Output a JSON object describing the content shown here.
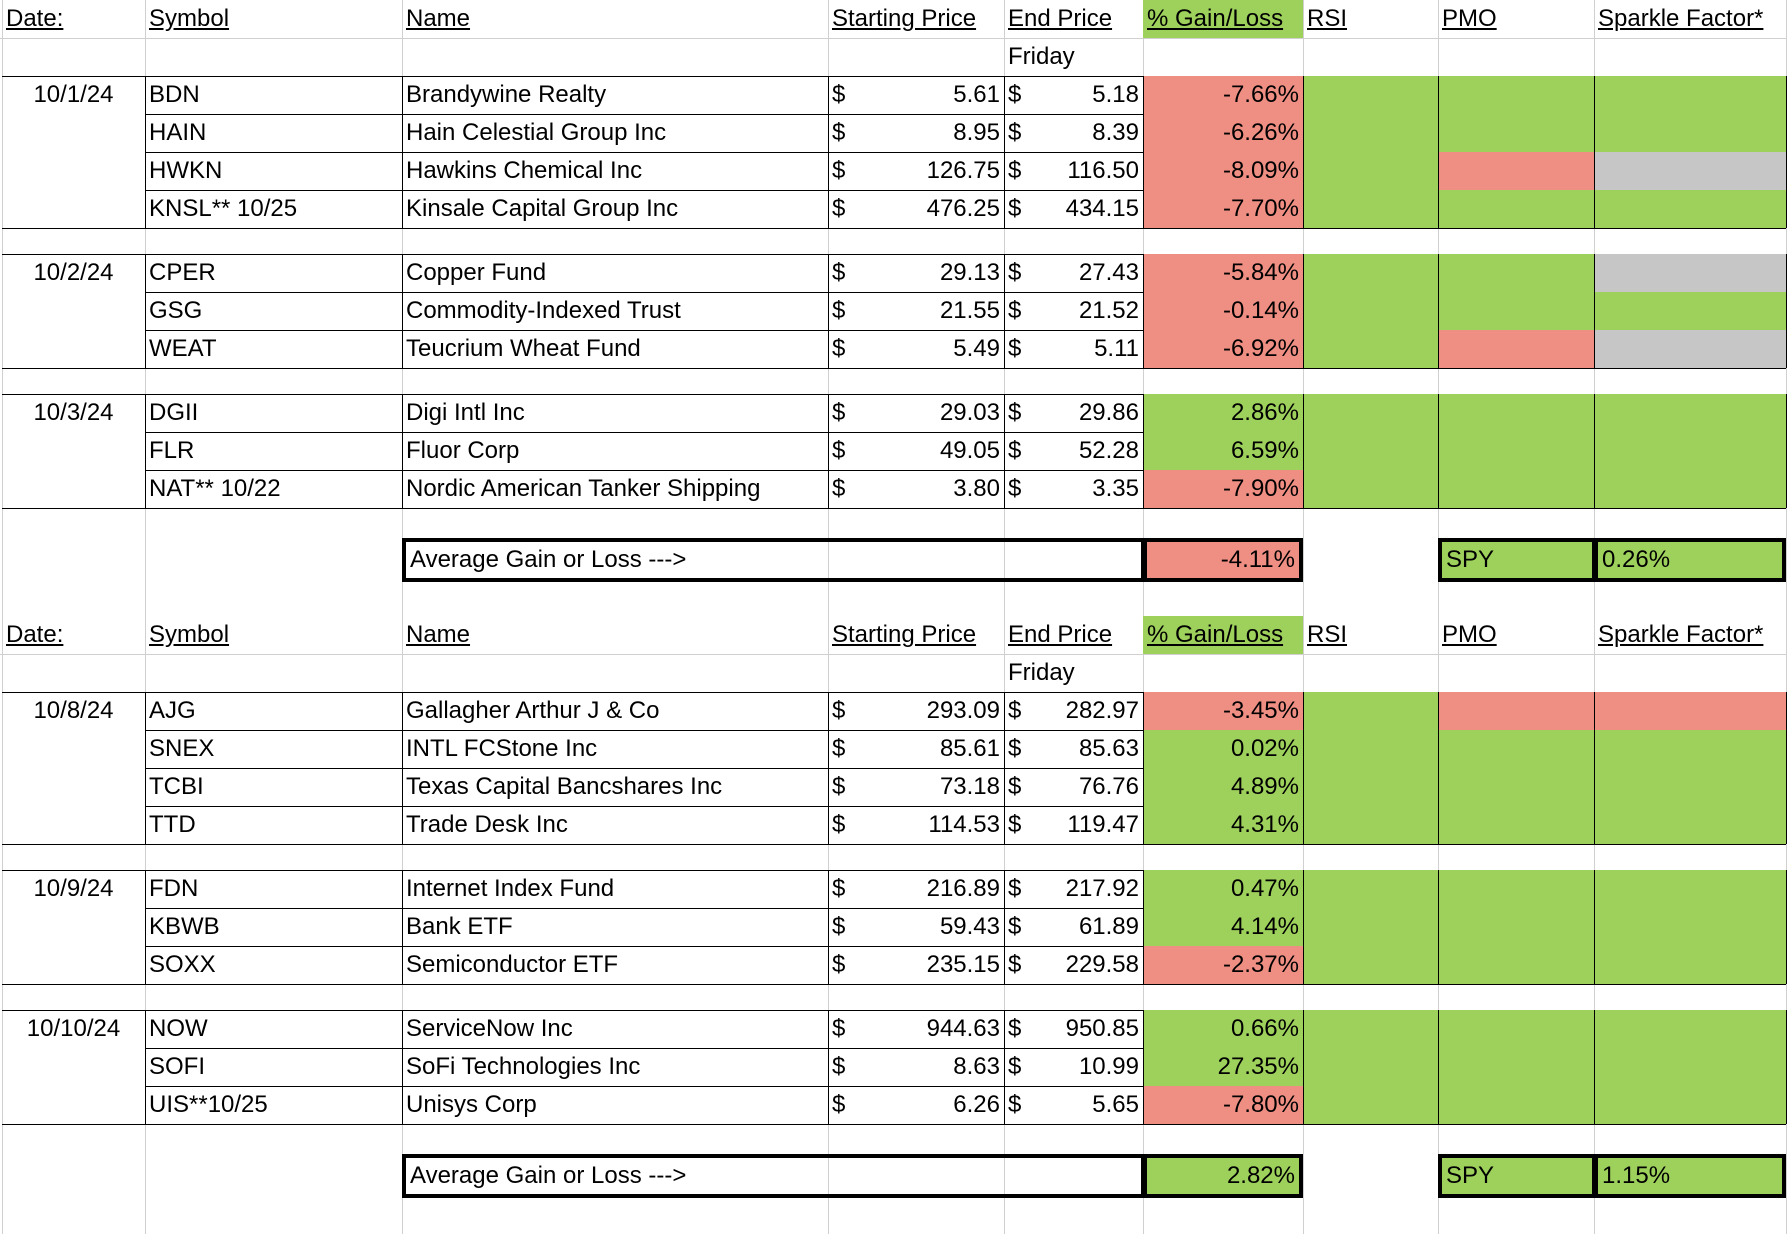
{
  "colors": {
    "green": "#9ed15c",
    "red": "#ef8f83",
    "gray": "#c6c6c6"
  },
  "sections": [
    {
      "headers": {
        "date": "Date:",
        "symbol": "Symbol",
        "name": "Name",
        "start": "Starting Price",
        "end": "End Price",
        "gain": "% Gain/Loss",
        "rsi": "RSI",
        "pmo": "PMO",
        "sparkle": "Sparkle Factor*"
      },
      "subheader": "Friday",
      "groups": [
        {
          "date": "10/1/24",
          "rows": [
            {
              "symbol": "BDN",
              "name": "Brandywine Realty",
              "start": "5.61",
              "end": "5.18",
              "gain": "-7.66%",
              "gain_color": "red",
              "rsi": "green",
              "pmo": "green",
              "sparkle": "green"
            },
            {
              "symbol": "HAIN",
              "name": "Hain Celestial Group Inc",
              "start": "8.95",
              "end": "8.39",
              "gain": "-6.26%",
              "gain_color": "red",
              "rsi": "green",
              "pmo": "green",
              "sparkle": "green"
            },
            {
              "symbol": "HWKN",
              "name": "Hawkins Chemical Inc",
              "start": "126.75",
              "end": "116.50",
              "gain": "-8.09%",
              "gain_color": "red",
              "rsi": "green",
              "pmo": "red",
              "sparkle": "gray"
            },
            {
              "symbol": "KNSL** 10/25",
              "name": "Kinsale Capital Group Inc",
              "start": "476.25",
              "end": "434.15",
              "gain": "-7.70%",
              "gain_color": "red",
              "rsi": "green",
              "pmo": "green",
              "sparkle": "green"
            }
          ]
        },
        {
          "date": "10/2/24",
          "rows": [
            {
              "symbol": "CPER",
              "name": "Copper Fund",
              "start": "29.13",
              "end": "27.43",
              "gain": "-5.84%",
              "gain_color": "red",
              "rsi": "green",
              "pmo": "green",
              "sparkle": "gray"
            },
            {
              "symbol": "GSG",
              "name": "Commodity-Indexed Trust",
              "start": "21.55",
              "end": "21.52",
              "gain": "-0.14%",
              "gain_color": "red",
              "rsi": "green",
              "pmo": "green",
              "sparkle": "green"
            },
            {
              "symbol": "WEAT",
              "name": "Teucrium Wheat Fund",
              "start": "5.49",
              "end": "5.11",
              "gain": "-6.92%",
              "gain_color": "red",
              "rsi": "green",
              "pmo": "red",
              "sparkle": "gray"
            }
          ]
        },
        {
          "date": "10/3/24",
          "rows": [
            {
              "symbol": "DGII",
              "name": "Digi Intl Inc",
              "start": "29.03",
              "end": "29.86",
              "gain": "2.86%",
              "gain_color": "green",
              "rsi": "green",
              "pmo": "green",
              "sparkle": "green"
            },
            {
              "symbol": "FLR",
              "name": "Fluor Corp",
              "start": "49.05",
              "end": "52.28",
              "gain": "6.59%",
              "gain_color": "green",
              "rsi": "green",
              "pmo": "green",
              "sparkle": "green"
            },
            {
              "symbol": "NAT** 10/22",
              "name": "Nordic American Tanker Shipping",
              "start": "3.80",
              "end": "3.35",
              "gain": "-7.90%",
              "gain_color": "red",
              "rsi": "green",
              "pmo": "green",
              "sparkle": "green"
            }
          ]
        }
      ],
      "average": {
        "label": "Average Gain or Loss --->",
        "value": "-4.11%",
        "value_color": "red",
        "spy_label": "SPY",
        "spy_value": "0.26%"
      }
    },
    {
      "headers": {
        "date": "Date:",
        "symbol": "Symbol",
        "name": "Name",
        "start": "Starting Price",
        "end": "End Price",
        "gain": "% Gain/Loss",
        "rsi": "RSI",
        "pmo": "PMO",
        "sparkle": "Sparkle Factor*"
      },
      "subheader": "Friday",
      "groups": [
        {
          "date": "10/8/24",
          "rows": [
            {
              "symbol": "AJG",
              "name": "Gallagher Arthur J & Co",
              "start": "293.09",
              "end": "282.97",
              "gain": "-3.45%",
              "gain_color": "red",
              "rsi": "green",
              "pmo": "red",
              "sparkle": "red"
            },
            {
              "symbol": "SNEX",
              "name": "INTL FCStone Inc",
              "start": "85.61",
              "end": "85.63",
              "gain": "0.02%",
              "gain_color": "green",
              "rsi": "green",
              "pmo": "green",
              "sparkle": "green"
            },
            {
              "symbol": "TCBI",
              "name": "Texas Capital Bancshares Inc",
              "start": "73.18",
              "end": "76.76",
              "gain": "4.89%",
              "gain_color": "green",
              "rsi": "green",
              "pmo": "green",
              "sparkle": "green"
            },
            {
              "symbol": "TTD",
              "name": "Trade Desk Inc",
              "start": "114.53",
              "end": "119.47",
              "gain": "4.31%",
              "gain_color": "green",
              "rsi": "green",
              "pmo": "green",
              "sparkle": "green"
            }
          ]
        },
        {
          "date": "10/9/24",
          "rows": [
            {
              "symbol": "FDN",
              "name": "Internet Index Fund",
              "start": "216.89",
              "end": "217.92",
              "gain": "0.47%",
              "gain_color": "green",
              "rsi": "green",
              "pmo": "green",
              "sparkle": "green"
            },
            {
              "symbol": "KBWB",
              "name": "Bank ETF",
              "start": "59.43",
              "end": "61.89",
              "gain": "4.14%",
              "gain_color": "green",
              "rsi": "green",
              "pmo": "green",
              "sparkle": "green"
            },
            {
              "symbol": "SOXX",
              "name": "Semiconductor ETF",
              "start": "235.15",
              "end": "229.58",
              "gain": "-2.37%",
              "gain_color": "red",
              "rsi": "green",
              "pmo": "green",
              "sparkle": "green"
            }
          ]
        },
        {
          "date": "10/10/24",
          "rows": [
            {
              "symbol": "NOW",
              "name": "ServiceNow Inc",
              "start": "944.63",
              "end": "950.85",
              "gain": "0.66%",
              "gain_color": "green",
              "rsi": "green",
              "pmo": "green",
              "sparkle": "green"
            },
            {
              "symbol": "SOFI",
              "name": "SoFi Technologies Inc",
              "start": "8.63",
              "end": "10.99",
              "gain": "27.35%",
              "gain_color": "green",
              "rsi": "green",
              "pmo": "green",
              "sparkle": "green"
            },
            {
              "symbol": "UIS**10/25",
              "name": "Unisys Corp",
              "start": "6.26",
              "end": "5.65",
              "gain": "-7.80%",
              "gain_color": "red",
              "rsi": "green",
              "pmo": "green",
              "sparkle": "green"
            }
          ]
        }
      ],
      "average": {
        "label": "Average Gain or Loss --->",
        "value": "2.82%",
        "value_color": "green",
        "spy_label": "SPY",
        "spy_value": "1.15%"
      }
    }
  ],
  "currency_symbol": "$"
}
